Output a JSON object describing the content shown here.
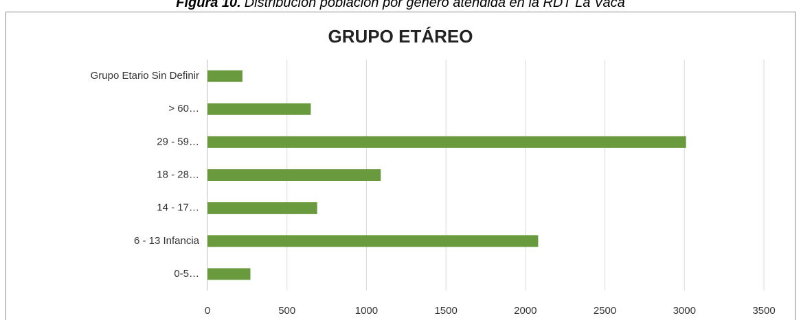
{
  "caption_label": "Figura 10.",
  "caption": "Distribución población por género atendida en la RDT La Vaca",
  "chart_data": {
    "type": "hbar",
    "title": "GRUPO ETÁREO",
    "categories": [
      "Grupo Etario Sin Definir",
      "> 60…",
      "29 - 59…",
      "18 - 28…",
      "14 - 17…",
      "6 - 13 Infancia",
      "0-5…"
    ],
    "values": [
      220,
      650,
      3010,
      1090,
      690,
      2080,
      270
    ],
    "color": "#6a9a3e",
    "xlim": [
      0,
      3500
    ],
    "xticks": [
      0,
      500,
      1000,
      1500,
      2000,
      2500,
      3000,
      3500
    ],
    "grid": true
  }
}
